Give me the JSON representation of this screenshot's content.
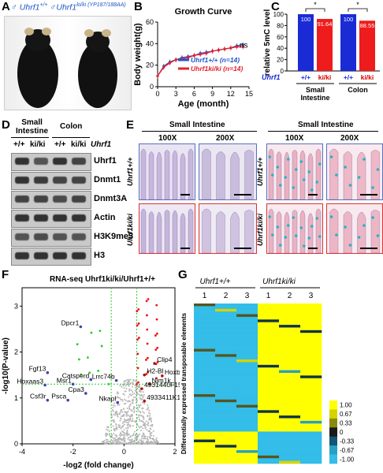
{
  "panels": {
    "A": {
      "letter": "A",
      "title_prefix": "♂ Uhrf1",
      "wt_sup": "+/+",
      "mid": " ♂Uhrf1",
      "ki_sup": "ki/ki (YP187/188AA)"
    },
    "B": {
      "letter": "B"
    },
    "C": {
      "letter": "C"
    },
    "D": {
      "letter": "D",
      "col1": "Small",
      "col1b": "Intestine",
      "col2": "Colon",
      "lane_wt": "+/+",
      "lane_ki": "ki/ki",
      "gene": "Uhrf1",
      "rows": [
        "Uhrf1",
        "Dnmt1",
        "Dnmt3A",
        "Actin",
        "H3K9me3",
        "H3"
      ]
    },
    "E": {
      "letter": "E",
      "left_header": "Small Intestine",
      "right_header": "Small Intestine",
      "mag1": "100X",
      "mag2": "200X",
      "row1": "Uhrf1+/+",
      "row2": "Uhrf1ki/ki"
    },
    "F": {
      "letter": "F"
    },
    "G": {
      "letter": "G",
      "group1": "Uhrf1+/+",
      "group2": "Uhrf1ki/ki",
      "cols": [
        "1",
        "2",
        "3",
        "1",
        "2",
        "3"
      ],
      "ylabel": "Differentially expressed transposable elements",
      "legend": [
        "1.00",
        "0.67",
        "0.33",
        "0",
        "-0.33",
        "-0.67",
        "-1.00"
      ]
    }
  },
  "chart_data": [
    {
      "type": "line",
      "title": "Growth Curve",
      "xlabel": "Age (month)",
      "ylabel": "Body weight(g)",
      "xlim": [
        0,
        15
      ],
      "ylim": [
        0,
        60
      ],
      "xticks": [
        "0",
        "3",
        "6",
        "9",
        "12",
        "15"
      ],
      "yticks": [
        "0",
        "20",
        "40",
        "60"
      ],
      "annotation": "ns",
      "series": [
        {
          "name": "Uhrf1+/+ (n=14)",
          "color": "#2255cc",
          "x": [
            0,
            1,
            2,
            3,
            4,
            5,
            6,
            7,
            8,
            9,
            10,
            11,
            12,
            13,
            14
          ],
          "y": [
            10,
            19,
            23,
            25,
            27,
            28,
            29,
            31,
            32,
            33,
            34,
            35,
            36,
            38,
            39
          ]
        },
        {
          "name": "Uhrf1ki/ki (n=14)",
          "color": "#e8202a",
          "x": [
            0,
            1,
            2,
            3,
            4,
            5,
            6,
            7,
            8,
            9,
            10,
            11,
            12,
            13,
            14
          ],
          "y": [
            10,
            18,
            22,
            25,
            26,
            27,
            29,
            30,
            31,
            33,
            34,
            35,
            36,
            37,
            37
          ]
        }
      ]
    },
    {
      "type": "bar",
      "ylabel": "relative 5mC level",
      "ylim": [
        0,
        100
      ],
      "yticks": [
        "0",
        "20",
        "40",
        "60",
        "80",
        "100"
      ],
      "categories": [
        "Small Intestine",
        "Colon"
      ],
      "row_label": "Uhrf1",
      "genotypes": [
        "+/+",
        "ki/ki"
      ],
      "significance": "*",
      "series": [
        {
          "name": "+/+",
          "color": "#1a2bd6",
          "values": [
            100,
            100
          ],
          "labels": [
            "100",
            "100"
          ]
        },
        {
          "name": "ki/ki",
          "color": "#ee1c1c",
          "values": [
            91.64,
            88.55
          ],
          "labels": [
            "91.64",
            "88.55"
          ]
        }
      ]
    },
    {
      "type": "scatter",
      "title": "RNA-seq Uhrf1ki/ki/Uhrf1+/+",
      "xlabel": "-log2 (fold change)",
      "ylabel": "-log10(P-value)",
      "xlim": [
        -4,
        2
      ],
      "ylim": [
        0,
        3.4
      ],
      "xticks": [
        "-4",
        "-2",
        "0",
        "2"
      ],
      "yticks": [
        "0",
        "1",
        "2",
        "3"
      ],
      "labeled_points": [
        {
          "label": "Dpcr1",
          "x": -1.7,
          "y": 2.55
        },
        {
          "label": "Fgf13",
          "x": -3.0,
          "y": 1.55
        },
        {
          "label": "Catsperd",
          "x": -1.3,
          "y": 1.4
        },
        {
          "label": "Msr1",
          "x": -2.0,
          "y": 1.3
        },
        {
          "label": "Hoxaas3",
          "x": -3.1,
          "y": 1.28
        },
        {
          "label": "Lrrc74b",
          "x": -0.3,
          "y": 1.38
        },
        {
          "label": "Cpa3",
          "x": -1.5,
          "y": 1.1
        },
        {
          "label": "Csf3r",
          "x": -3.0,
          "y": 0.95
        },
        {
          "label": "Psca",
          "x": -2.2,
          "y": 0.95
        },
        {
          "label": "Nkapl",
          "x": -0.25,
          "y": 0.9
        },
        {
          "label": "Clip4",
          "x": 1.2,
          "y": 1.75
        },
        {
          "label": "H2-Bl",
          "x": 0.8,
          "y": 1.5
        },
        {
          "label": "Hoxb9",
          "x": 1.5,
          "y": 1.48
        },
        {
          "label": "Nim1k",
          "x": 1.0,
          "y": 1.3
        },
        {
          "label": "4931440F15Rik",
          "x": 0.7,
          "y": 1.2
        },
        {
          "label": "4933411K16Rik",
          "x": 0.8,
          "y": 0.93
        }
      ]
    },
    {
      "type": "heatmap",
      "columns": [
        "1",
        "2",
        "3",
        "1",
        "2",
        "3"
      ],
      "colorbar": [
        "1.00",
        "0.67",
        "0.33",
        "0",
        "-0.33",
        "-0.67",
        "-1.00"
      ]
    }
  ]
}
